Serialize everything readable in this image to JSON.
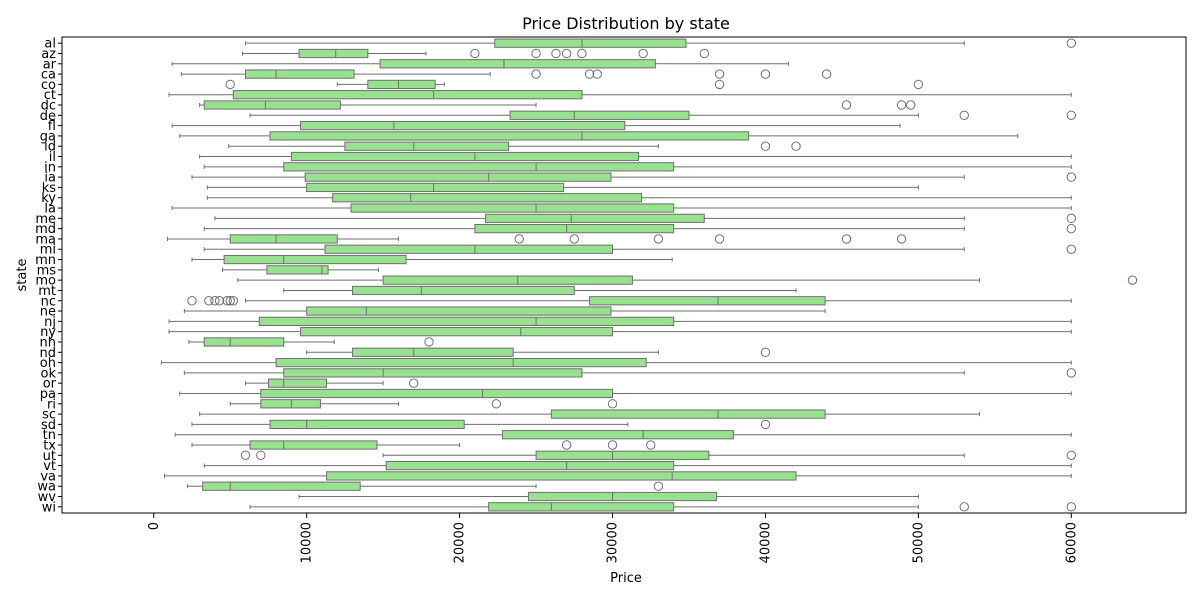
{
  "chart_data": {
    "type": "box",
    "orientation": "horizontal",
    "title": "Price Distribution by state",
    "xlabel": "Price",
    "ylabel": "state",
    "xlim": [
      -6000,
      67500
    ],
    "xticks": [
      0,
      10000,
      20000,
      30000,
      40000,
      50000,
      60000
    ],
    "xtick_labels": [
      "0",
      "10000",
      "20000",
      "30000",
      "40000",
      "50000",
      "60000"
    ],
    "box_color": "#98e28f",
    "line_color": "#6f6f6f",
    "categories": [
      "al",
      "az",
      "ar",
      "ca",
      "co",
      "ct",
      "dc",
      "de",
      "fl",
      "ga",
      "id",
      "il",
      "in",
      "ia",
      "ks",
      "ky",
      "la",
      "me",
      "md",
      "ma",
      "mi",
      "mn",
      "ms",
      "mo",
      "mt",
      "nc",
      "ne",
      "nj",
      "ny",
      "nh",
      "nd",
      "oh",
      "ok",
      "or",
      "pa",
      "ri",
      "sc",
      "sd",
      "tn",
      "tx",
      "ut",
      "vt",
      "va",
      "wa",
      "wv",
      "wi"
    ],
    "boxes": [
      {
        "state": "al",
        "whislo": 6000,
        "q1": 22300,
        "med": 28000,
        "q3": 34800,
        "whishi": 53000,
        "fliers": [
          60000
        ]
      },
      {
        "state": "az",
        "whislo": 5800,
        "q1": 9500,
        "med": 11900,
        "q3": 14000,
        "whishi": 17800,
        "fliers": [
          21000,
          25000,
          26300,
          27000,
          28000,
          32000,
          36000
        ]
      },
      {
        "state": "ar",
        "whislo": 1200,
        "q1": 14800,
        "med": 22900,
        "q3": 32800,
        "whishi": 41500,
        "fliers": []
      },
      {
        "state": "ca",
        "whislo": 1800,
        "q1": 6000,
        "med": 8000,
        "q3": 13100,
        "whishi": 22000,
        "fliers": [
          25000,
          28500,
          29000,
          37000,
          40000,
          44000
        ]
      },
      {
        "state": "co",
        "whislo": 12000,
        "q1": 14000,
        "med": 16000,
        "q3": 18400,
        "whishi": 19000,
        "fliers": [
          5000,
          37000,
          50000
        ]
      },
      {
        "state": "ct",
        "whislo": 1000,
        "q1": 5200,
        "med": 18300,
        "q3": 28000,
        "whishi": 60000,
        "fliers": []
      },
      {
        "state": "dc",
        "whislo": 3000,
        "q1": 3300,
        "med": 7300,
        "q3": 12200,
        "whishi": 25000,
        "fliers": [
          45300,
          48900,
          49500
        ]
      },
      {
        "state": "de",
        "whislo": 6300,
        "q1": 23300,
        "med": 27500,
        "q3": 35000,
        "whishi": 50000,
        "fliers": [
          53000,
          60000
        ]
      },
      {
        "state": "fl",
        "whislo": 1200,
        "q1": 9600,
        "med": 15700,
        "q3": 30800,
        "whishi": 48800,
        "fliers": []
      },
      {
        "state": "ga",
        "whislo": 1700,
        "q1": 7600,
        "med": 28000,
        "q3": 38900,
        "whishi": 56500,
        "fliers": []
      },
      {
        "state": "id",
        "whislo": 4900,
        "q1": 12500,
        "med": 17000,
        "q3": 23200,
        "whishi": 33000,
        "fliers": [
          40000,
          42000
        ]
      },
      {
        "state": "il",
        "whislo": 3000,
        "q1": 9000,
        "med": 21000,
        "q3": 31700,
        "whishi": 60000,
        "fliers": []
      },
      {
        "state": "in",
        "whislo": 3300,
        "q1": 8500,
        "med": 25000,
        "q3": 34000,
        "whishi": 60000,
        "fliers": []
      },
      {
        "state": "ia",
        "whislo": 2500,
        "q1": 9900,
        "med": 21900,
        "q3": 29900,
        "whishi": 53000,
        "fliers": [
          60000
        ]
      },
      {
        "state": "ks",
        "whislo": 3500,
        "q1": 10000,
        "med": 18300,
        "q3": 26800,
        "whishi": 50000,
        "fliers": []
      },
      {
        "state": "ky",
        "whislo": 3500,
        "q1": 11700,
        "med": 16800,
        "q3": 31900,
        "whishi": 60000,
        "fliers": []
      },
      {
        "state": "la",
        "whislo": 1200,
        "q1": 12900,
        "med": 25000,
        "q3": 34000,
        "whishi": 60000,
        "fliers": []
      },
      {
        "state": "me",
        "whislo": 4000,
        "q1": 21700,
        "med": 27300,
        "q3": 36000,
        "whishi": 53000,
        "fliers": [
          60000
        ]
      },
      {
        "state": "md",
        "whislo": 3300,
        "q1": 21000,
        "med": 27000,
        "q3": 34000,
        "whishi": 53000,
        "fliers": [
          60000
        ]
      },
      {
        "state": "ma",
        "whislo": 900,
        "q1": 5000,
        "med": 8000,
        "q3": 12000,
        "whishi": 16000,
        "fliers": [
          23900,
          27500,
          33000,
          37000,
          45300,
          48900
        ]
      },
      {
        "state": "mi",
        "whislo": 3300,
        "q1": 11200,
        "med": 21000,
        "q3": 30000,
        "whishi": 53000,
        "fliers": [
          60000
        ]
      },
      {
        "state": "mn",
        "whislo": 2500,
        "q1": 4600,
        "med": 8500,
        "q3": 16500,
        "whishi": 33900,
        "fliers": []
      },
      {
        "state": "ms",
        "whislo": 4500,
        "q1": 7400,
        "med": 11000,
        "q3": 11400,
        "whishi": 14700,
        "fliers": []
      },
      {
        "state": "mo",
        "whislo": 5500,
        "q1": 15000,
        "med": 23800,
        "q3": 31300,
        "whishi": 54000,
        "fliers": [
          64000
        ]
      },
      {
        "state": "mt",
        "whislo": 8500,
        "q1": 13000,
        "med": 17500,
        "q3": 27500,
        "whishi": 42000,
        "fliers": []
      },
      {
        "state": "nc",
        "whislo": 6000,
        "q1": 28500,
        "med": 36900,
        "q3": 43900,
        "whishi": 60000,
        "fliers": [
          2500,
          3600,
          4000,
          4300,
          4800,
          5000,
          5200
        ]
      },
      {
        "state": "ne",
        "whislo": 2000,
        "q1": 10000,
        "med": 13900,
        "q3": 29900,
        "whishi": 43900,
        "fliers": []
      },
      {
        "state": "nj",
        "whislo": 1000,
        "q1": 6900,
        "med": 25000,
        "q3": 34000,
        "whishi": 60000,
        "fliers": []
      },
      {
        "state": "ny",
        "whislo": 1000,
        "q1": 9600,
        "med": 24000,
        "q3": 30000,
        "whishi": 60000,
        "fliers": []
      },
      {
        "state": "nh",
        "whislo": 2300,
        "q1": 3300,
        "med": 5000,
        "q3": 8500,
        "whishi": 11800,
        "fliers": [
          18000
        ]
      },
      {
        "state": "nd",
        "whislo": 10000,
        "q1": 13000,
        "med": 17000,
        "q3": 23500,
        "whishi": 33000,
        "fliers": [
          40000
        ]
      },
      {
        "state": "oh",
        "whislo": 500,
        "q1": 8000,
        "med": 23500,
        "q3": 32200,
        "whishi": 60000,
        "fliers": []
      },
      {
        "state": "ok",
        "whislo": 2000,
        "q1": 8500,
        "med": 15000,
        "q3": 28000,
        "whishi": 53000,
        "fliers": [
          60000
        ]
      },
      {
        "state": "or",
        "whislo": 6000,
        "q1": 7500,
        "med": 8500,
        "q3": 11300,
        "whishi": 15000,
        "fliers": [
          17000
        ]
      },
      {
        "state": "pa",
        "whislo": 1700,
        "q1": 7000,
        "med": 21500,
        "q3": 30000,
        "whishi": 60000,
        "fliers": []
      },
      {
        "state": "ri",
        "whislo": 5000,
        "q1": 7000,
        "med": 9000,
        "q3": 10900,
        "whishi": 16000,
        "fliers": [
          22400,
          30000
        ]
      },
      {
        "state": "sc",
        "whislo": 3000,
        "q1": 26000,
        "med": 36900,
        "q3": 43900,
        "whishi": 54000,
        "fliers": []
      },
      {
        "state": "sd",
        "whislo": 2500,
        "q1": 7600,
        "med": 10000,
        "q3": 20300,
        "whishi": 31000,
        "fliers": [
          40000
        ]
      },
      {
        "state": "tn",
        "whislo": 1400,
        "q1": 22800,
        "med": 32000,
        "q3": 37900,
        "whishi": 60000,
        "fliers": []
      },
      {
        "state": "tx",
        "whislo": 2500,
        "q1": 6300,
        "med": 8500,
        "q3": 14600,
        "whishi": 20000,
        "fliers": [
          27000,
          30000,
          32500
        ]
      },
      {
        "state": "ut",
        "whislo": 15000,
        "q1": 25000,
        "med": 30000,
        "q3": 36300,
        "whishi": 53000,
        "fliers": [
          6000,
          7000,
          60000
        ]
      },
      {
        "state": "vt",
        "whislo": 3300,
        "q1": 15200,
        "med": 27000,
        "q3": 34000,
        "whishi": 60000,
        "fliers": []
      },
      {
        "state": "va",
        "whislo": 700,
        "q1": 11300,
        "med": 33900,
        "q3": 42000,
        "whishi": 60000,
        "fliers": []
      },
      {
        "state": "wa",
        "whislo": 2200,
        "q1": 3200,
        "med": 5000,
        "q3": 13500,
        "whishi": 25000,
        "fliers": [
          33000
        ]
      },
      {
        "state": "wv",
        "whislo": 9500,
        "q1": 24500,
        "med": 30000,
        "q3": 36800,
        "whishi": 50000,
        "fliers": []
      },
      {
        "state": "wi",
        "whislo": 6300,
        "q1": 21900,
        "med": 26000,
        "q3": 34000,
        "whishi": 50000,
        "fliers": [
          53000,
          60000
        ]
      }
    ]
  }
}
